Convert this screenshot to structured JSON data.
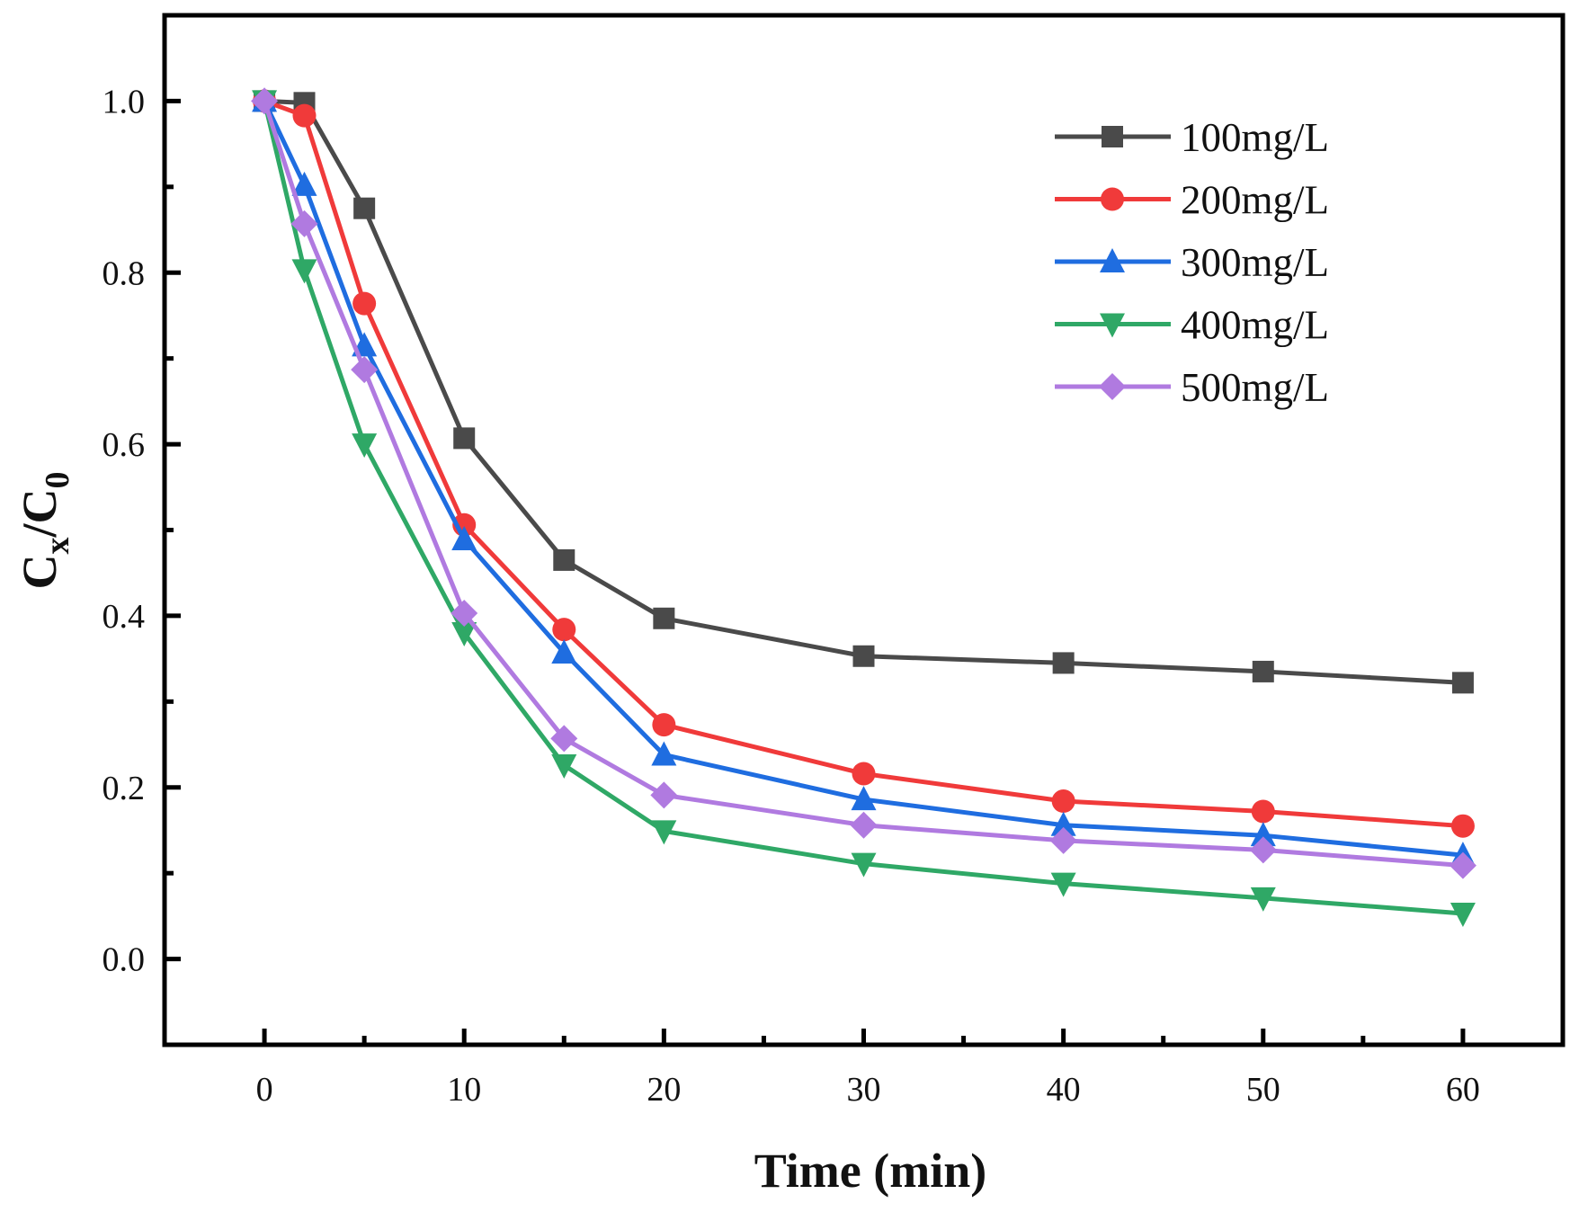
{
  "chart_data": {
    "type": "line",
    "title": "",
    "xlabel": "Time (min)",
    "ylabel_main": "C",
    "ylabel_sub1": "x",
    "ylabel_slash": "/C",
    "ylabel_sub2": "0",
    "xlim": [
      -5,
      65
    ],
    "ylim": [
      -0.1,
      1.1
    ],
    "xticks": [
      0,
      10,
      20,
      30,
      40,
      50,
      60
    ],
    "xtick_labels": [
      "0",
      "10",
      "20",
      "30",
      "40",
      "50",
      "60"
    ],
    "yticks": [
      0.0,
      0.2,
      0.4,
      0.6,
      0.8,
      1.0
    ],
    "ytick_labels": [
      "0.0",
      "0.2",
      "0.4",
      "0.6",
      "0.8",
      "1.0"
    ],
    "grid": false,
    "legend_position": "top-right",
    "x": [
      0,
      2,
      5,
      10,
      15,
      20,
      30,
      40,
      50,
      60
    ],
    "series": [
      {
        "name": "100mg/L",
        "color": "#4a4a4a",
        "marker": "square",
        "values": [
          1.0,
          0.998,
          0.875,
          0.607,
          0.465,
          0.397,
          0.353,
          0.345,
          0.335,
          0.322
        ]
      },
      {
        "name": "200mg/L",
        "color": "#f03a3a",
        "marker": "circle",
        "values": [
          1.0,
          0.983,
          0.764,
          0.506,
          0.384,
          0.273,
          0.216,
          0.184,
          0.172,
          0.155
        ]
      },
      {
        "name": "300mg/L",
        "color": "#1f6de0",
        "marker": "triangle-up",
        "values": [
          1.0,
          0.902,
          0.715,
          0.489,
          0.357,
          0.238,
          0.186,
          0.156,
          0.144,
          0.121
        ]
      },
      {
        "name": "400mg/L",
        "color": "#2fa866",
        "marker": "triangle-down",
        "values": [
          1.0,
          0.803,
          0.6,
          0.38,
          0.226,
          0.149,
          0.111,
          0.088,
          0.071,
          0.053
        ]
      },
      {
        "name": "500mg/L",
        "color": "#b07ae0",
        "marker": "diamond",
        "values": [
          1.0,
          0.857,
          0.687,
          0.403,
          0.257,
          0.191,
          0.156,
          0.138,
          0.127,
          0.109
        ]
      }
    ]
  }
}
